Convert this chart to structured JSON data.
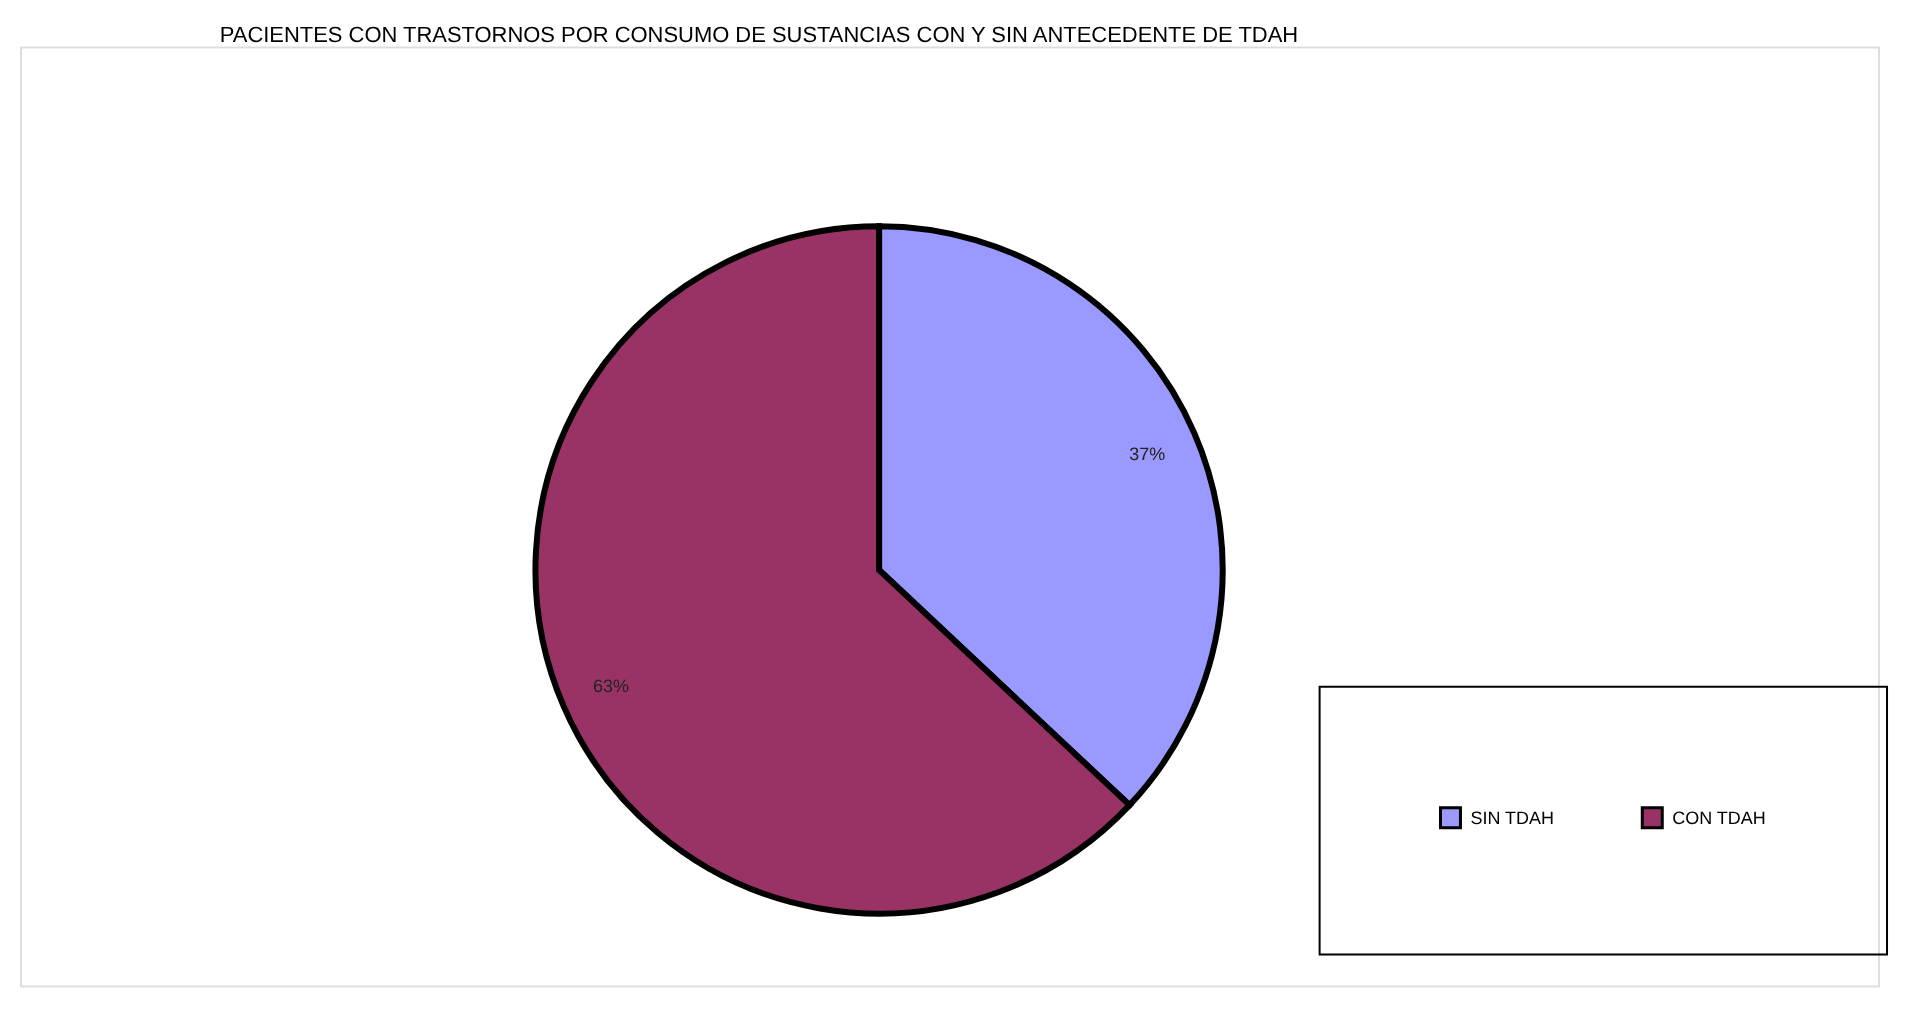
{
  "chart_data": {
    "type": "pie",
    "title": "PACIENTES CON TRASTORNOS POR CONSUMO DE SUSTANCIAS CON Y SIN ANTECEDENTE DE TDAH",
    "categories": [
      "SIN TDAH",
      "CON TDAH"
    ],
    "values": [
      37,
      63
    ],
    "colors": [
      "#9999ff",
      "#993366"
    ],
    "value_labels": [
      "37%",
      "63%"
    ],
    "legend": "bottom right"
  }
}
